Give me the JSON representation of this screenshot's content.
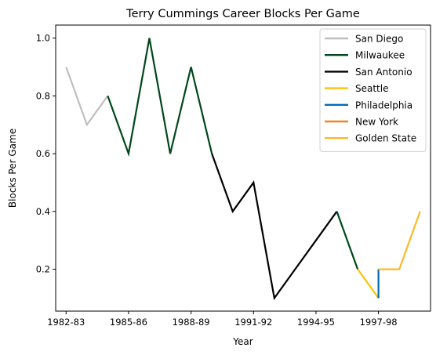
{
  "chart_data": {
    "type": "line",
    "title": "Terry Cummings Career Blocks Per Game",
    "xlabel": "Year",
    "ylabel": "Blocks Per Game",
    "x_ticks": [
      "1982-83",
      "1985-86",
      "1988-89",
      "1991-92",
      "1994-95",
      "1997-98"
    ],
    "x_tick_positions": [
      0,
      3,
      6,
      9,
      12,
      15
    ],
    "y_ticks": [
      "0.2",
      "0.4",
      "0.6",
      "0.8",
      "1.0"
    ],
    "y_tick_values": [
      0.2,
      0.4,
      0.6,
      0.8,
      1.0
    ],
    "xlim": [
      -0.5,
      17.5
    ],
    "ylim": [
      0.055,
      1.045
    ],
    "grid": false,
    "legend_position": "top-right",
    "series": [
      {
        "name": "San Diego",
        "color": "#bfbfbf",
        "x": [
          0,
          1,
          2
        ],
        "y": [
          0.9,
          0.7,
          0.8
        ]
      },
      {
        "name": "Milwaukee",
        "color": "#00471b",
        "x": [
          2,
          3,
          4,
          5,
          6,
          7
        ],
        "y": [
          0.8,
          0.6,
          1.0,
          0.6,
          0.9,
          0.6
        ]
      },
      {
        "name": "San Antonio",
        "color": "#000000",
        "x": [
          7,
          8,
          9,
          10,
          11,
          12,
          13
        ],
        "y": [
          0.6,
          0.4,
          0.5,
          0.1,
          0.2,
          0.3,
          0.4
        ]
      },
      {
        "name": "Milwaukee",
        "color": "#00471b",
        "x": [
          13,
          14
        ],
        "y": [
          0.4,
          0.2
        ],
        "legend": false
      },
      {
        "name": "Seattle",
        "color": "#ffc200",
        "x": [
          14,
          15
        ],
        "y": [
          0.2,
          0.1
        ]
      },
      {
        "name": "Philadelphia",
        "color": "#006bb6",
        "x": [
          15,
          15
        ],
        "y": [
          0.1,
          0.2
        ]
      },
      {
        "name": "New York",
        "color": "#f58426",
        "x": [
          15,
          16
        ],
        "y": [
          0.2,
          0.2
        ]
      },
      {
        "name": "Golden State",
        "color": "#fdb927",
        "x": [
          15,
          16,
          17
        ],
        "y": [
          0.2,
          0.2,
          0.4
        ]
      }
    ]
  }
}
